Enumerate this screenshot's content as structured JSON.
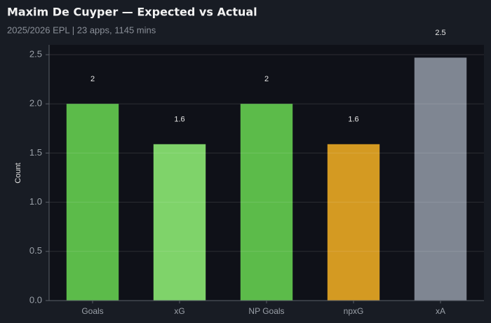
{
  "chart_data": {
    "type": "bar",
    "title": "Maxim De Cuyper — Expected vs Actual",
    "subtitle": "2025/2026 EPL | 23 apps, 1145 mins",
    "ylabel": "Count",
    "categories": [
      "Goals",
      "xG",
      "NP Goals",
      "npxG",
      "xA"
    ],
    "values": [
      2,
      1.59,
      2,
      1.59,
      2.47
    ],
    "value_labels": [
      "2",
      "1.6",
      "2",
      "1.6",
      "2.5"
    ],
    "colors": [
      "#5cbb4a",
      "#7fd36a",
      "#5cbb4a",
      "#d49a22",
      "#7f8692"
    ],
    "ylim": [
      0,
      2.6
    ],
    "yticks": [
      {
        "value": 0,
        "label": "0.0"
      },
      {
        "value": 0.5,
        "label": "0.5"
      },
      {
        "value": 1,
        "label": "1.0"
      },
      {
        "value": 1.5,
        "label": "1.5"
      },
      {
        "value": 2,
        "label": "2.0"
      },
      {
        "value": 2.5,
        "label": "2.5"
      }
    ],
    "grid": true
  }
}
